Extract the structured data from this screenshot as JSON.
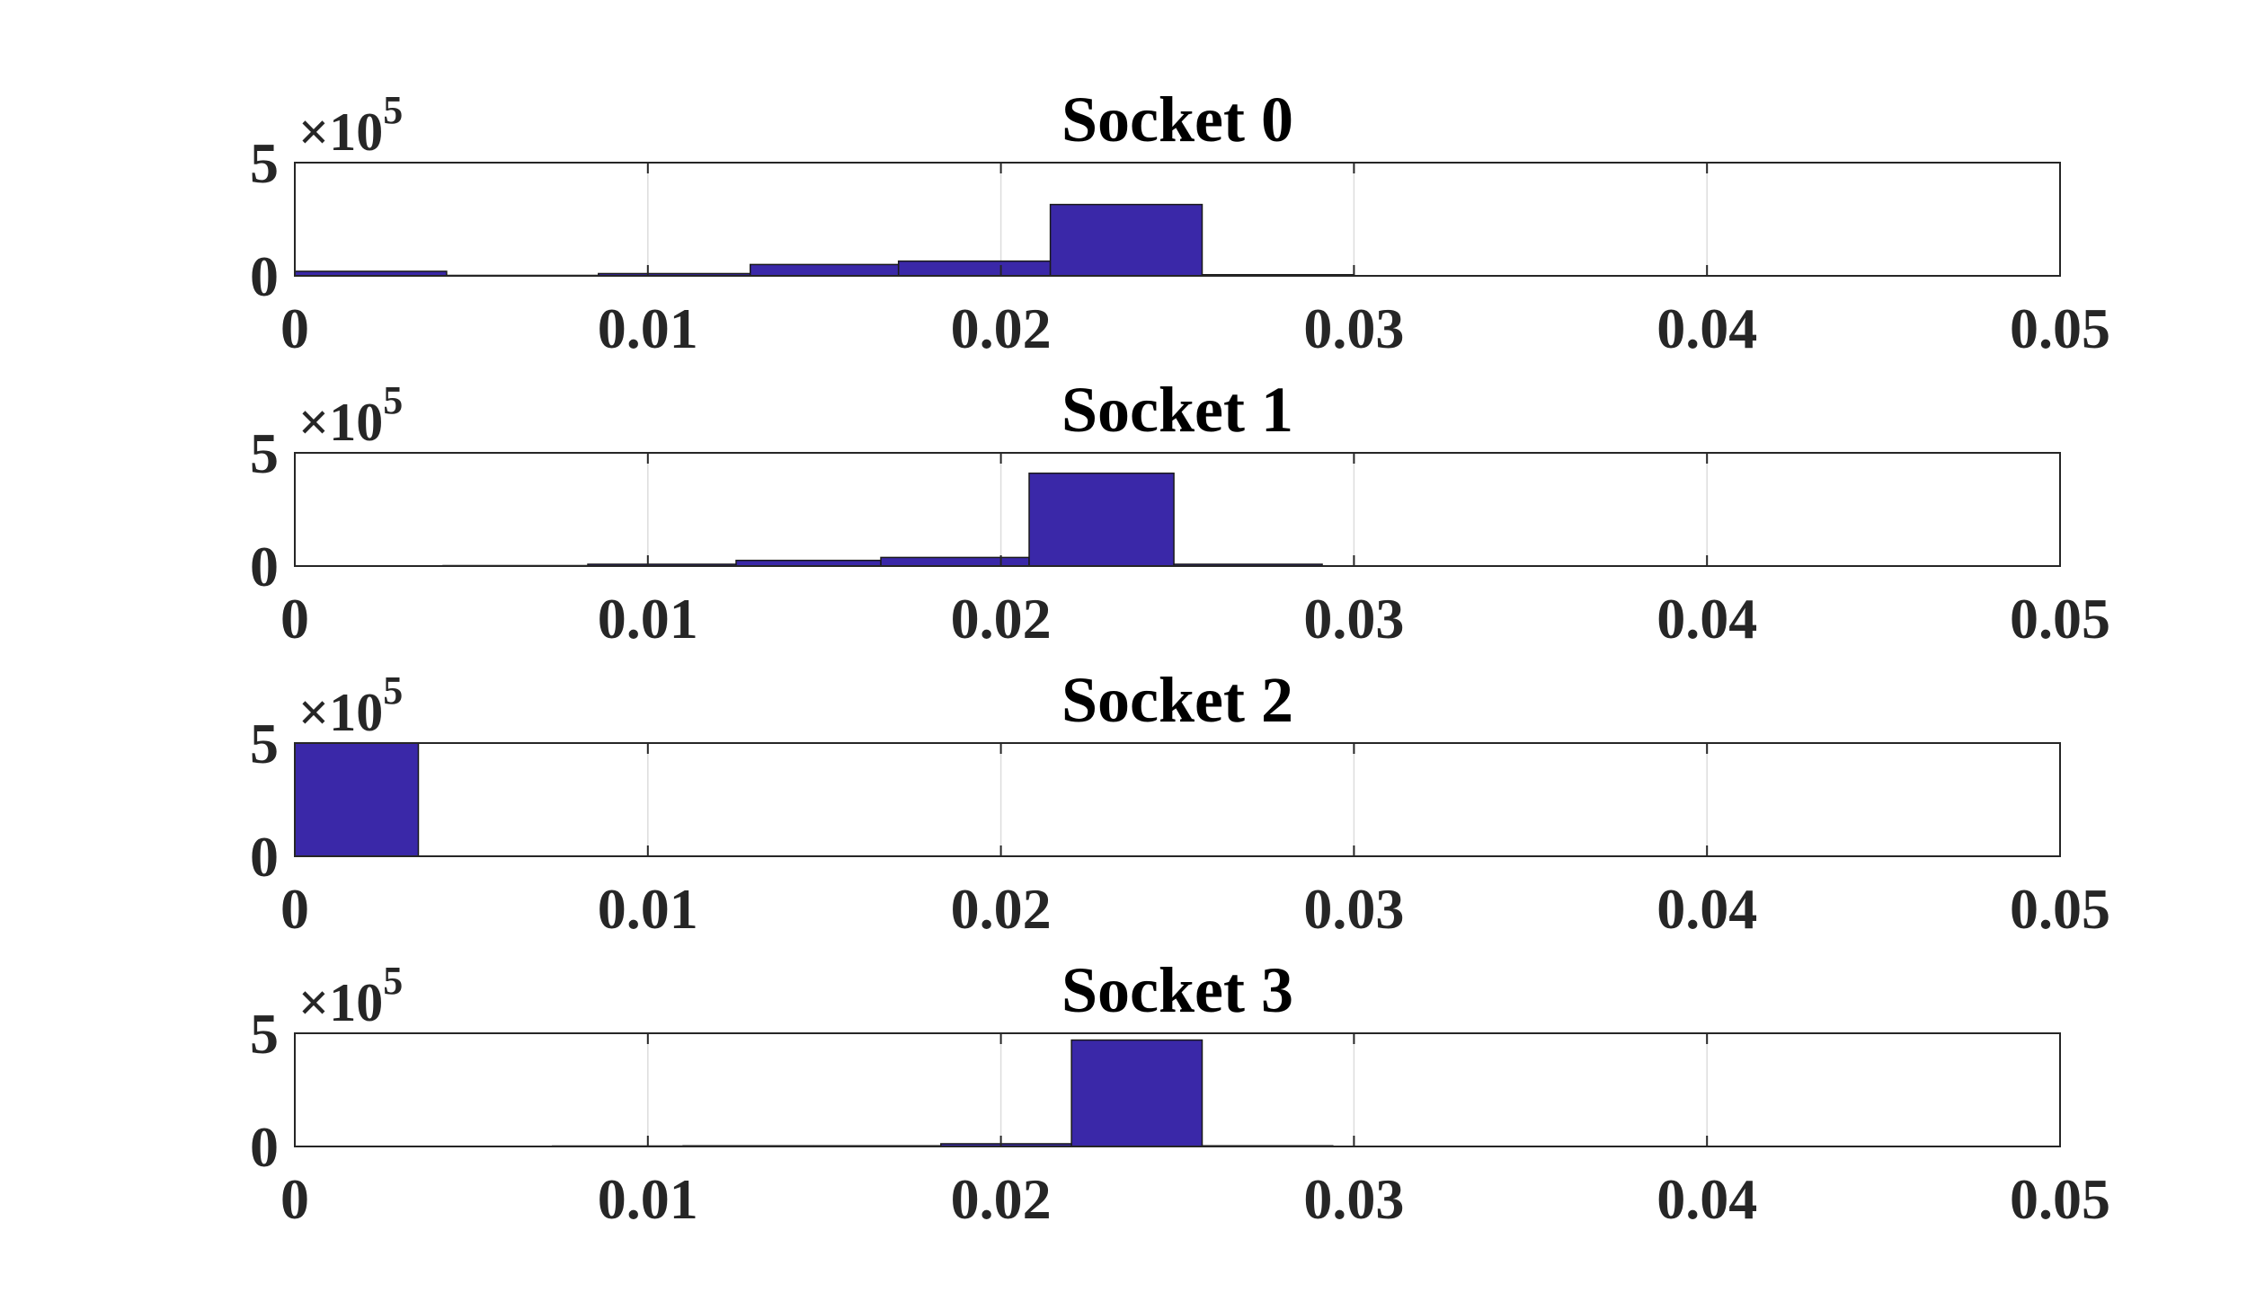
{
  "colors": {
    "bar_fill": "#3A28A8",
    "bar_edge": "#1a1a1a",
    "axis": "#262626",
    "grid": "#dddddd",
    "background": "#ffffff"
  },
  "chart_data": [
    {
      "type": "bar",
      "title": "Socket 0",
      "xlabel": "",
      "ylabel": "",
      "xlim": [
        0,
        0.05
      ],
      "ylim": [
        0,
        500000
      ],
      "y_exponent": "×10",
      "y_exponent_power": "5",
      "x_ticks": [
        "0",
        "0.01",
        "0.02",
        "0.03",
        "0.04",
        "0.05"
      ],
      "y_ticks": [
        "0",
        "5"
      ],
      "grid": "x",
      "bin_edges": [
        0,
        0.0043,
        0.0086,
        0.0129,
        0.0171,
        0.0214,
        0.0257,
        0.03
      ],
      "values": [
        20000,
        2000,
        10000,
        50000,
        65000,
        315000,
        5000
      ]
    },
    {
      "type": "bar",
      "title": "Socket 1",
      "xlabel": "",
      "ylabel": "",
      "xlim": [
        0,
        0.05
      ],
      "ylim": [
        0,
        500000
      ],
      "y_exponent": "×10",
      "y_exponent_power": "5",
      "x_ticks": [
        "0",
        "0.01",
        "0.02",
        "0.03",
        "0.04",
        "0.05"
      ],
      "y_ticks": [
        "0",
        "5"
      ],
      "grid": "x",
      "bin_edges": [
        0,
        0.0042,
        0.0083,
        0.0125,
        0.0166,
        0.0208,
        0.0249,
        0.0291
      ],
      "values": [
        1000,
        2000,
        8000,
        25000,
        38000,
        410000,
        8000
      ]
    },
    {
      "type": "bar",
      "title": "Socket 2",
      "xlabel": "",
      "ylabel": "",
      "xlim": [
        0,
        0.05
      ],
      "ylim": [
        0,
        500000
      ],
      "y_exponent": "×10",
      "y_exponent_power": "5",
      "x_ticks": [
        "0",
        "0.01",
        "0.02",
        "0.03",
        "0.04",
        "0.05"
      ],
      "y_ticks": [
        "0",
        "5"
      ],
      "grid": "x",
      "bin_edges": [
        0,
        0.0035
      ],
      "values": [
        500000
      ]
    },
    {
      "type": "bar",
      "title": "Socket 3",
      "xlabel": "",
      "ylabel": "",
      "xlim": [
        0,
        0.05
      ],
      "ylim": [
        0,
        500000
      ],
      "y_exponent": "×10",
      "y_exponent_power": "5",
      "x_ticks": [
        "0",
        "0.01",
        "0.02",
        "0.03",
        "0.04",
        "0.05"
      ],
      "y_ticks": [
        "0",
        "5"
      ],
      "grid": "x",
      "bin_edges": [
        0.0073,
        0.011,
        0.0147,
        0.0183,
        0.022,
        0.0257,
        0.0294
      ],
      "values": [
        2000,
        3000,
        3000,
        12000,
        470000,
        3000
      ]
    }
  ]
}
